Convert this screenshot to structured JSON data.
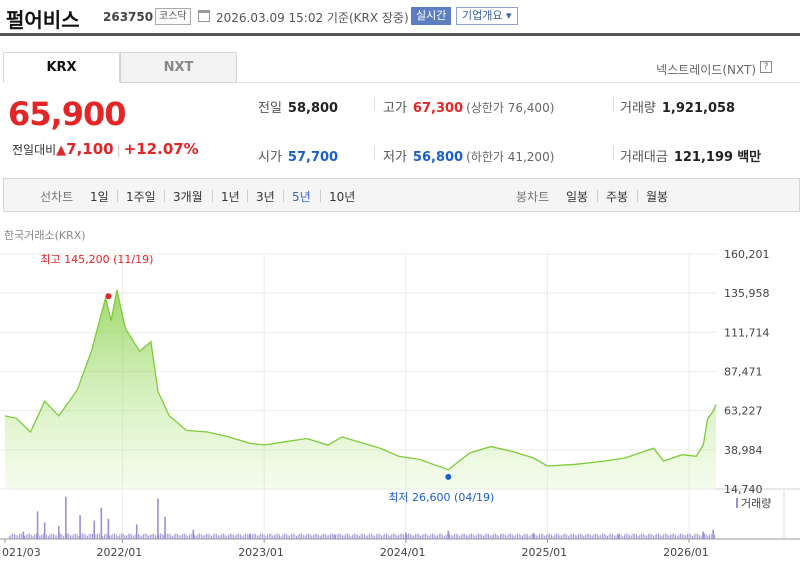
{
  "header": {
    "name": "펄어비스",
    "code": "263750",
    "market": "코스닥",
    "timestamp": "2026.03.09 15:02 기준(KRX 장중)",
    "realtime": "실시간",
    "company_info": "기업개요 ▾"
  },
  "tabs": {
    "krx": "KRX",
    "nxt": "NXT"
  },
  "nxt_link": "넥스트레이드(NXT)",
  "help_icon_label": "?",
  "price": {
    "current": "65,900",
    "change_label": "전일대비",
    "change_arrow": "▲",
    "change_value": "7,100",
    "change_pct": "+12.07%"
  },
  "info": {
    "prev_close": {
      "label": "전일",
      "value": "58,800"
    },
    "high": {
      "label": "고가",
      "value": "67,300",
      "sub": "(상한가 76,400)"
    },
    "volume": {
      "label": "거래량",
      "value": "1,921,058"
    },
    "open": {
      "label": "시가",
      "value": "57,700"
    },
    "low": {
      "label": "저가",
      "value": "56,800",
      "sub": "(하한가 41,200)"
    },
    "amount": {
      "label": "거래대금",
      "value": "121,199",
      "unit": "백만"
    }
  },
  "toolbar": {
    "line_label": "선차트",
    "periods": [
      "1일",
      "1주일",
      "3개월",
      "1년",
      "3년",
      "5년",
      "10년"
    ],
    "active_period": "5년",
    "candle_label": "봉차트",
    "candles": [
      "일봉",
      "주봉",
      "월봉"
    ]
  },
  "chart_header": "한국거래소(KRX)",
  "colors": {
    "up": "#e32525",
    "down": "#1a5fc8",
    "line": "#7ecb3a",
    "fill": "#c9f0a4",
    "volume": "#9c8ed6"
  },
  "chart_data": {
    "type": "area",
    "x_ticks": [
      "021/03",
      "2022/01",
      "2023/01",
      "2024/01",
      "2025/01",
      "2026/01"
    ],
    "y_ticks": [
      "160,201",
      "135,958",
      "111,714",
      "87,471",
      "63,227",
      "38,984",
      "14,740"
    ],
    "ylim": [
      14740,
      160201
    ],
    "x_range": [
      "2021-03",
      "2026-03"
    ],
    "high_annotation": "최고 145,200 (11/19)",
    "low_annotation": "최저 26,600 (04/19)",
    "volume_label": "거래량",
    "series": [
      {
        "values": [
          [
            2021.17,
            60000
          ],
          [
            2021.25,
            58500
          ],
          [
            2021.35,
            50000
          ],
          [
            2021.45,
            69000
          ],
          [
            2021.55,
            60000
          ],
          [
            2021.68,
            76000
          ],
          [
            2021.78,
            100000
          ],
          [
            2021.88,
            133000
          ],
          [
            2021.92,
            119000
          ],
          [
            2021.96,
            138000
          ],
          [
            2022.02,
            114000
          ],
          [
            2022.12,
            100000
          ],
          [
            2022.2,
            106000
          ],
          [
            2022.25,
            75000
          ],
          [
            2022.33,
            60000
          ],
          [
            2022.45,
            51000
          ],
          [
            2022.6,
            50000
          ],
          [
            2022.75,
            47000
          ],
          [
            2022.9,
            43000
          ],
          [
            2023.0,
            42000
          ],
          [
            2023.15,
            44000
          ],
          [
            2023.3,
            46000
          ],
          [
            2023.45,
            42000
          ],
          [
            2023.55,
            47000
          ],
          [
            2023.7,
            43000
          ],
          [
            2023.82,
            40000
          ],
          [
            2023.95,
            35000
          ],
          [
            2024.1,
            33000
          ],
          [
            2024.3,
            26600
          ],
          [
            2024.45,
            37000
          ],
          [
            2024.6,
            41000
          ],
          [
            2024.75,
            38000
          ],
          [
            2024.9,
            34000
          ],
          [
            2025.0,
            29000
          ],
          [
            2025.2,
            30000
          ],
          [
            2025.4,
            32000
          ],
          [
            2025.55,
            34000
          ],
          [
            2025.75,
            40000
          ],
          [
            2025.82,
            32000
          ],
          [
            2025.95,
            36000
          ],
          [
            2026.05,
            35000
          ],
          [
            2026.1,
            42000
          ],
          [
            2026.13,
            58000
          ],
          [
            2026.17,
            63000
          ],
          [
            2026.19,
            67000
          ]
        ]
      }
    ],
    "volume": [
      [
        2021.3,
        8
      ],
      [
        2021.4,
        30
      ],
      [
        2021.45,
        18
      ],
      [
        2021.55,
        14
      ],
      [
        2021.6,
        46
      ],
      [
        2021.7,
        26
      ],
      [
        2021.8,
        20
      ],
      [
        2021.85,
        34
      ],
      [
        2021.9,
        22
      ],
      [
        2022.1,
        16
      ],
      [
        2022.25,
        44
      ],
      [
        2022.3,
        24
      ],
      [
        2022.5,
        10
      ],
      [
        2022.9,
        6
      ],
      [
        2023.5,
        5
      ],
      [
        2024.0,
        7
      ],
      [
        2024.3,
        9
      ],
      [
        2024.9,
        6
      ],
      [
        2025.5,
        5
      ],
      [
        2026.1,
        8
      ],
      [
        2026.17,
        10
      ]
    ]
  }
}
